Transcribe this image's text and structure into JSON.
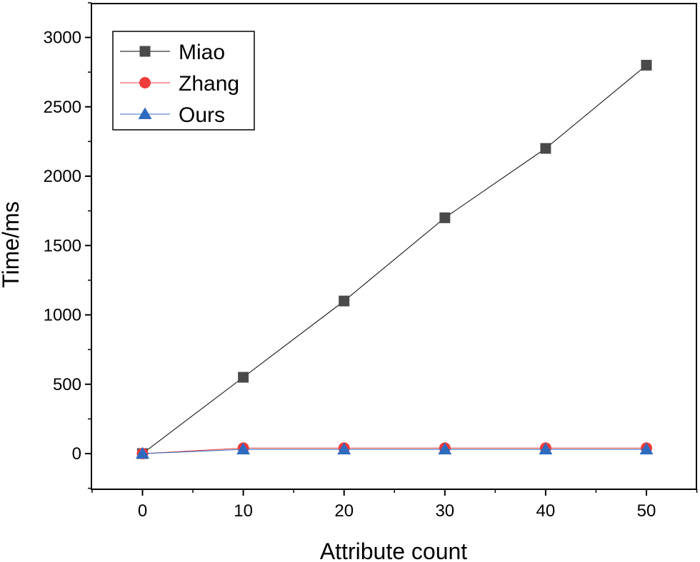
{
  "chart_data": {
    "type": "line",
    "xlabel": "Attribute count",
    "ylabel": "Time/ms",
    "x": [
      0,
      10,
      20,
      30,
      40,
      50
    ],
    "xlim": [
      -5,
      55
    ],
    "ylim": [
      -250,
      3250
    ],
    "xticks": [
      0,
      10,
      20,
      30,
      40,
      50
    ],
    "yticks": [
      0,
      500,
      1000,
      1500,
      2000,
      2500,
      3000
    ],
    "grid": false,
    "legend_position": "top-left",
    "series": [
      {
        "name": "Miao",
        "marker": "square",
        "color": "#4a4a4a",
        "line_color": "#000000",
        "values": [
          0,
          550,
          1100,
          1700,
          2200,
          2800
        ]
      },
      {
        "name": "Zhang",
        "marker": "circle",
        "color": "#ef3b3b",
        "line_color": "#ef3b3b",
        "values": [
          0,
          40,
          40,
          40,
          40,
          40
        ]
      },
      {
        "name": "Ours",
        "marker": "triangle",
        "color": "#2f6bbf",
        "line_color": "#2f6bbf",
        "values": [
          0,
          30,
          30,
          30,
          30,
          30
        ]
      }
    ]
  }
}
